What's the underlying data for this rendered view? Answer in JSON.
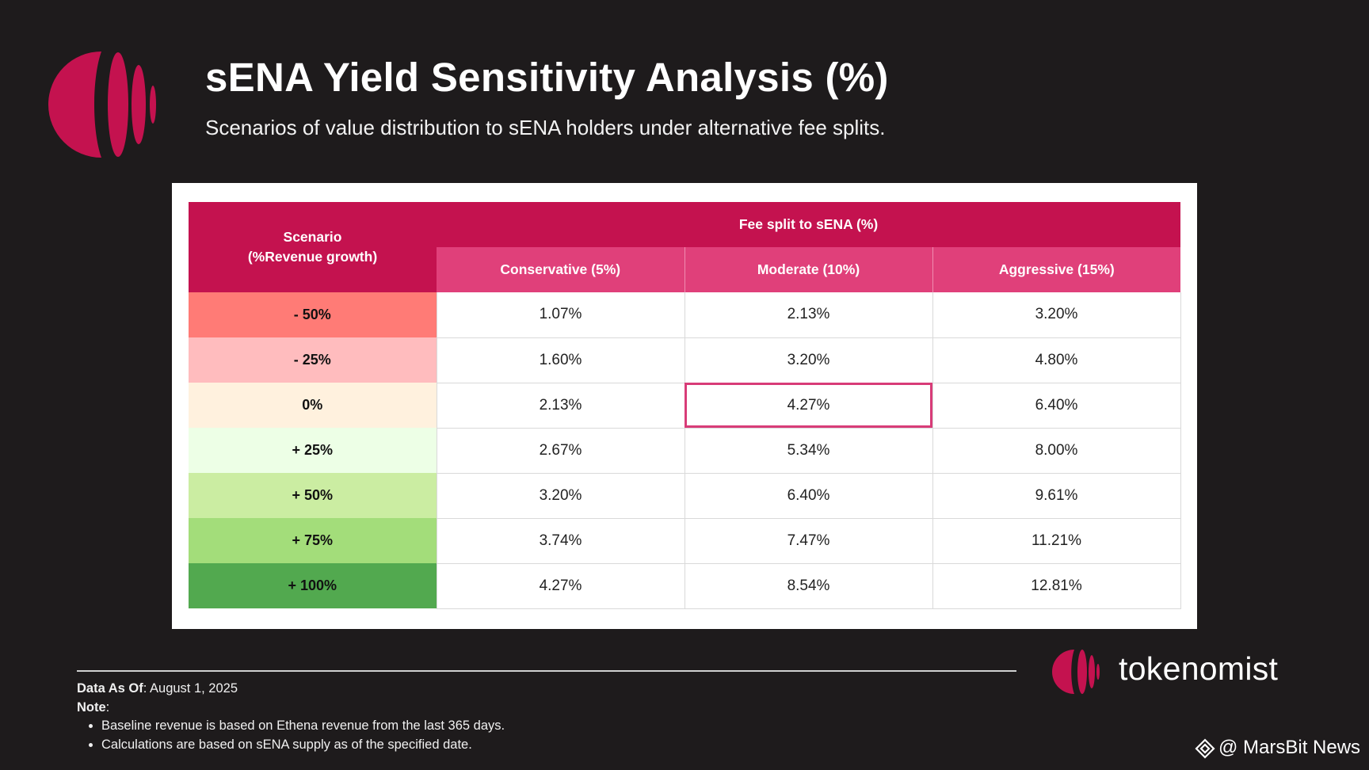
{
  "header": {
    "title": "sENA Yield Sensitivity Analysis (%)",
    "subtitle": "Scenarios of value distribution to sENA holders under alternative fee splits."
  },
  "chart_data": {
    "type": "table",
    "row_header_line1": "Scenario",
    "row_header_line2": "(%Revenue growth)",
    "column_group_header": "Fee split to sENA (%)",
    "columns": [
      "Conservative (5%)",
      "Moderate (10%)",
      "Aggressive (15%)"
    ],
    "rows": [
      {
        "scenario": "- 50%",
        "color": "#ff7b76",
        "values": [
          "1.07%",
          "2.13%",
          "3.20%"
        ]
      },
      {
        "scenario": "- 25%",
        "color": "#ffbcbe",
        "values": [
          "1.60%",
          "3.20%",
          "4.80%"
        ]
      },
      {
        "scenario": "0%",
        "color": "#fff1de",
        "values": [
          "2.13%",
          "4.27%",
          "6.40%"
        ]
      },
      {
        "scenario": "+ 25%",
        "color": "#edffe6",
        "values": [
          "2.67%",
          "5.34%",
          "8.00%"
        ]
      },
      {
        "scenario": "+ 50%",
        "color": "#cbeda2",
        "values": [
          "3.20%",
          "6.40%",
          "9.61%"
        ]
      },
      {
        "scenario": "+ 75%",
        "color": "#a3dd7a",
        "values": [
          "3.74%",
          "7.47%",
          "11.21%"
        ]
      },
      {
        "scenario": "+ 100%",
        "color": "#52a94f",
        "values": [
          "4.27%",
          "8.54%",
          "12.81%"
        ]
      }
    ],
    "highlighted_cell": {
      "row": 2,
      "column": 1
    }
  },
  "footer": {
    "data_as_of_label": "Data As Of",
    "data_as_of_value": ": August 1, 2025",
    "note_label": "Note",
    "note_colon": ":",
    "notes": [
      "Baseline revenue is based on Ethena revenue from the last 365 days.",
      "Calculations are based on sENA supply as of the specified date."
    ]
  },
  "brand": {
    "name": "tokenomist"
  },
  "watermark": {
    "text": "@ MarsBit News"
  },
  "colors": {
    "background": "#1e1b1c",
    "brand_primary": "#c4124f",
    "brand_secondary": "#e0407a",
    "highlight_border": "#d83c78"
  },
  "icons": {
    "header_logo": "tokenomist-logo-icon",
    "brand_logo": "tokenomist-logo-icon",
    "watermark": "binance-diamond-icon"
  }
}
